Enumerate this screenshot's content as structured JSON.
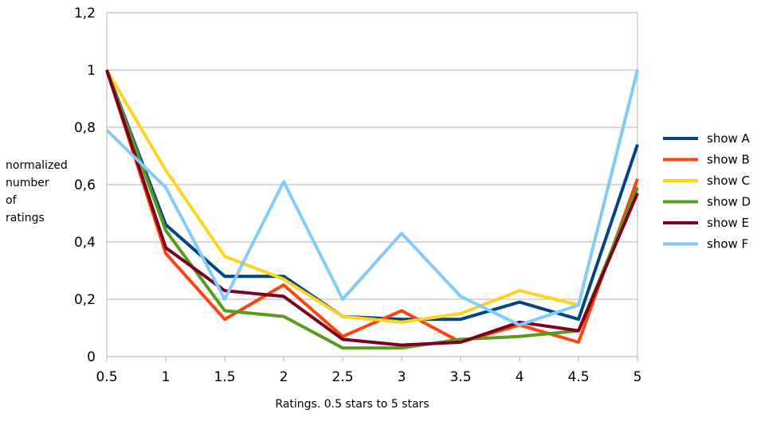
{
  "chart_data": {
    "type": "line",
    "title": "",
    "xlabel": "Ratings. 0.5 stars to 5 stars",
    "ylabel_lines": [
      "normalized",
      "number",
      "of",
      "ratings"
    ],
    "x": [
      0.5,
      1,
      1.5,
      2,
      2.5,
      3,
      3.5,
      4,
      4.5,
      5
    ],
    "x_tick_labels": [
      "0.5",
      "1",
      "1.5",
      "2",
      "2.5",
      "3",
      "3.5",
      "4",
      "4.5",
      "5"
    ],
    "ylim": [
      0,
      1.2
    ],
    "y_ticks": [
      0,
      0.2,
      0.4,
      0.6,
      0.8,
      1,
      1.2
    ],
    "y_tick_labels": [
      "0",
      "0,2",
      "0,4",
      "0,6",
      "0,8",
      "1",
      "1,2"
    ],
    "grid": true,
    "legend_position": "right",
    "series": [
      {
        "name": "show A",
        "color": "#004586",
        "values": [
          1,
          0.46,
          0.28,
          0.28,
          0.14,
          0.13,
          0.13,
          0.19,
          0.13,
          0.74
        ]
      },
      {
        "name": "show B",
        "color": "#ff420e",
        "values": [
          1,
          0.36,
          0.13,
          0.25,
          0.07,
          0.16,
          0.05,
          0.11,
          0.05,
          0.62
        ]
      },
      {
        "name": "show C",
        "color": "#ffd320",
        "values": [
          1,
          0.65,
          0.35,
          0.27,
          0.14,
          0.12,
          0.15,
          0.23,
          0.18,
          1
        ]
      },
      {
        "name": "show D",
        "color": "#579d1c",
        "values": [
          1,
          0.44,
          0.16,
          0.14,
          0.03,
          0.03,
          0.06,
          0.07,
          0.09,
          0.59
        ]
      },
      {
        "name": "show E",
        "color": "#7e0021",
        "values": [
          1,
          0.38,
          0.23,
          0.21,
          0.06,
          0.04,
          0.05,
          0.12,
          0.09,
          0.57
        ]
      },
      {
        "name": "show F",
        "color": "#83caff",
        "values": [
          0.79,
          0.59,
          0.2,
          0.61,
          0.2,
          0.43,
          0.21,
          0.11,
          0.18,
          1
        ]
      }
    ]
  }
}
